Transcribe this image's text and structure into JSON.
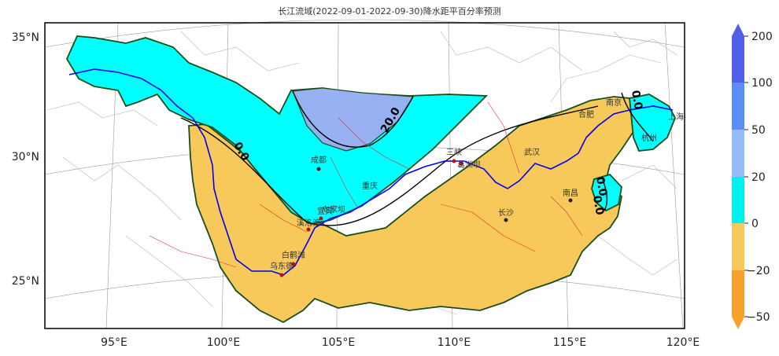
{
  "title": "长江流域(2022-09-01-2022-09-30)降水距平百分率预测",
  "lat_ticks": [
    "35°N",
    "30°N",
    "25°N"
  ],
  "lon_ticks": [
    "95°E",
    "100°E",
    "105°E",
    "110°E",
    "115°E",
    "120°E"
  ],
  "colorbar": {
    "labels": [
      "200",
      "100",
      "50",
      "20",
      "0",
      "−20",
      "−50"
    ],
    "colors": [
      "#4f5fe8",
      "#5b8ef5",
      "#96bcf7",
      "#00f0f0",
      "#f7c95a",
      "#f7a02c"
    ]
  },
  "region_colors": {
    "positive_20_50": "#96b0f2",
    "positive_0_20": "#00ffff",
    "negative_0_20": "#f7c95a"
  },
  "contour_labels": [
    "0.0",
    "20.0",
    "0.0",
    "0.0",
    "0.0"
  ],
  "cities": [
    {
      "name": "成都"
    },
    {
      "name": "重庆"
    },
    {
      "name": "宜宾"
    },
    {
      "name": "向家坝"
    },
    {
      "name": "溪洛渡"
    },
    {
      "name": "白鹤滩"
    },
    {
      "name": "乌东德"
    },
    {
      "name": "三峡"
    },
    {
      "name": "葛洲坝"
    },
    {
      "name": "武汉"
    },
    {
      "name": "长沙"
    },
    {
      "name": "南昌"
    },
    {
      "name": "合肥"
    },
    {
      "name": "南京"
    },
    {
      "name": "杭州"
    },
    {
      "name": "上海"
    }
  ]
}
